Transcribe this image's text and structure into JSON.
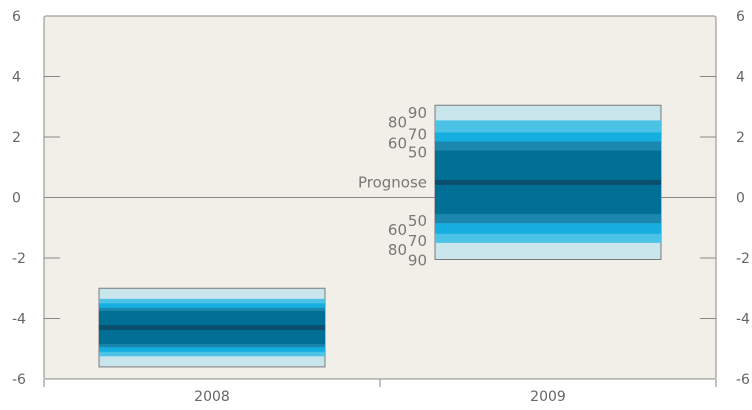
{
  "chart_data": {
    "type": "fan",
    "title": "",
    "xlabel": "",
    "ylabel": "",
    "ylim": [
      -6,
      6
    ],
    "y_ticks": [
      6,
      4,
      2,
      0,
      -2,
      -4,
      -6
    ],
    "y_tick_labels": [
      "6",
      "4",
      "2",
      "0",
      "-2",
      "-4",
      "-6"
    ],
    "categories": [
      "2008",
      "2009"
    ],
    "central_label": "Prognose",
    "band_levels": [
      50,
      60,
      70,
      80,
      90
    ],
    "band_level_labels": [
      "50",
      "60",
      "70",
      "80",
      "90"
    ],
    "bands": [
      {
        "category": "2008",
        "median": -4.3,
        "intervals": {
          "50": [
            -4.85,
            -3.75
          ],
          "60": [
            -4.95,
            -3.65
          ],
          "70": [
            -5.1,
            -3.5
          ],
          "80": [
            -5.25,
            -3.35
          ],
          "90": [
            -5.6,
            -3.0
          ]
        }
      },
      {
        "category": "2009",
        "median": 0.5,
        "intervals": {
          "50": [
            -0.55,
            1.55
          ],
          "60": [
            -0.85,
            1.85
          ],
          "70": [
            -1.2,
            2.15
          ],
          "80": [
            -1.5,
            2.55
          ],
          "90": [
            -2.05,
            3.05
          ]
        }
      }
    ],
    "labeled_category": "2009",
    "colors": {
      "plot_background": "#f1efe7",
      "axis": "#888888",
      "zero_line": "#888888",
      "median": "#0b4f6e",
      "band_50": "#006f95",
      "band_60": "#1c87ae",
      "band_70": "#16aee0",
      "band_80": "#4cc3e6",
      "band_90": "#c9e5ec"
    }
  }
}
